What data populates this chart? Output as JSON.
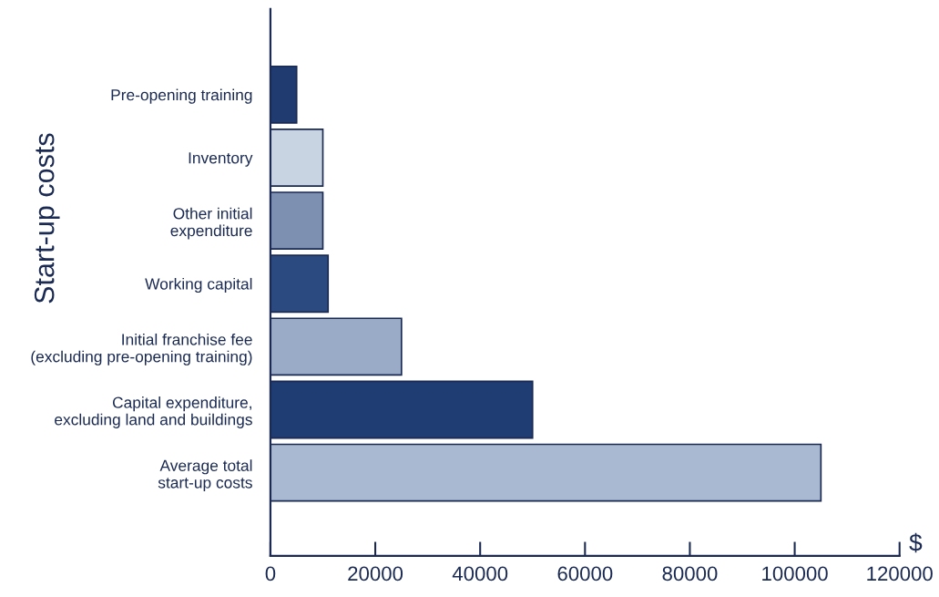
{
  "chart_data": {
    "type": "bar",
    "orientation": "horizontal",
    "categories": [
      "Pre-opening training",
      "Inventory",
      "Other initial\nexpenditure",
      "Working capital",
      "Initial franchise fee\n(excluding pre-opening training)",
      "Capital expenditure,\nexcluding land and buildings",
      "Average total\nstart-up costs"
    ],
    "values": [
      5000,
      10000,
      10000,
      11000,
      25000,
      50000,
      105000
    ],
    "colors": [
      "#1f3b6f",
      "#c9d4e2",
      "#7d90b2",
      "#2b4a80",
      "#9aabc7",
      "#1f3d73",
      "#a9b9d1"
    ],
    "ylabel": "Start-up costs",
    "xlabel": "$",
    "xlim": [
      0,
      120000
    ],
    "xticks": [
      0,
      20000,
      40000,
      60000,
      80000,
      100000,
      120000
    ],
    "grid": false,
    "legend": false
  }
}
